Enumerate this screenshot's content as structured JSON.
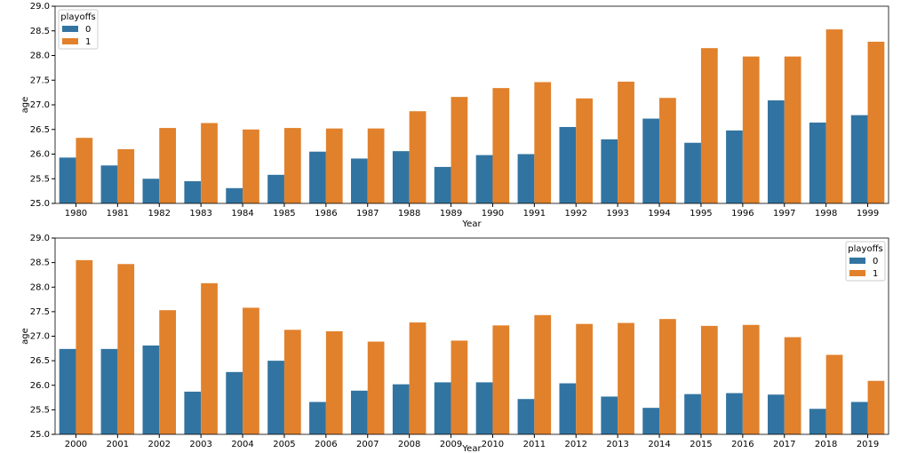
{
  "chart_data": [
    {
      "type": "bar",
      "x_label": "Year",
      "y_label": "age",
      "legend_title": "playoffs",
      "legend": "upper left",
      "categories": [
        "1980",
        "1981",
        "1982",
        "1983",
        "1984",
        "1985",
        "1986",
        "1987",
        "1988",
        "1989",
        "1990",
        "1991",
        "1992",
        "1993",
        "1994",
        "1995",
        "1996",
        "1997",
        "1998",
        "1999"
      ],
      "series": [
        {
          "name": "0",
          "color": "#3274a1",
          "values": [
            25.93,
            25.77,
            25.5,
            25.45,
            25.31,
            25.58,
            26.05,
            25.91,
            26.06,
            25.74,
            25.98,
            26.0,
            26.55,
            26.3,
            26.72,
            26.23,
            26.48,
            27.09,
            26.64,
            26.79
          ]
        },
        {
          "name": "1",
          "color": "#e1812c",
          "values": [
            26.33,
            26.1,
            26.53,
            26.63,
            26.5,
            26.53,
            26.52,
            26.52,
            26.87,
            27.16,
            27.34,
            27.46,
            27.13,
            27.47,
            27.14,
            28.15,
            27.98,
            27.98,
            28.53,
            28.28
          ]
        }
      ],
      "ylim": [
        25,
        29
      ],
      "yticks": [
        {
          "value": 25,
          "label": "25.0"
        },
        25.5,
        {
          "value": 26,
          "label": "26.0"
        },
        26.5,
        {
          "value": 27,
          "label": "27.0"
        },
        27.5,
        {
          "value": 28,
          "label": "28.0"
        },
        28.5,
        {
          "value": 29,
          "label": "29.0"
        }
      ]
    },
    {
      "type": "bar",
      "x_label": "Year",
      "y_label": "age",
      "legend_title": "playoffs",
      "legend": "upper right",
      "categories": [
        "2000",
        "2001",
        "2002",
        "2003",
        "2004",
        "2005",
        "2006",
        "2007",
        "2008",
        "2009",
        "2010",
        "2011",
        "2012",
        "2013",
        "2014",
        "2015",
        "2016",
        "2017",
        "2018",
        "2019"
      ],
      "series": [
        {
          "name": "0",
          "color": "#3274a1",
          "values": [
            26.74,
            26.74,
            26.81,
            25.87,
            26.27,
            26.5,
            25.66,
            25.89,
            26.02,
            26.06,
            26.06,
            25.72,
            26.04,
            25.77,
            25.54,
            25.82,
            25.84,
            25.81,
            25.52,
            25.66
          ]
        },
        {
          "name": "1",
          "color": "#e1812c",
          "values": [
            28.55,
            28.47,
            27.53,
            28.08,
            27.58,
            27.13,
            27.1,
            26.89,
            27.28,
            26.91,
            27.22,
            27.43,
            27.25,
            27.27,
            27.35,
            27.21,
            27.23,
            26.98,
            26.62,
            26.09
          ]
        }
      ],
      "ylim": [
        25,
        29
      ],
      "yticks": [
        {
          "value": 25,
          "label": "25.0"
        },
        25.5,
        {
          "value": 26,
          "label": "26.0"
        },
        26.5,
        {
          "value": 27,
          "label": "27.0"
        },
        27.5,
        {
          "value": 28,
          "label": "28.0"
        },
        28.5,
        {
          "value": 29,
          "label": "29.0"
        }
      ]
    }
  ]
}
